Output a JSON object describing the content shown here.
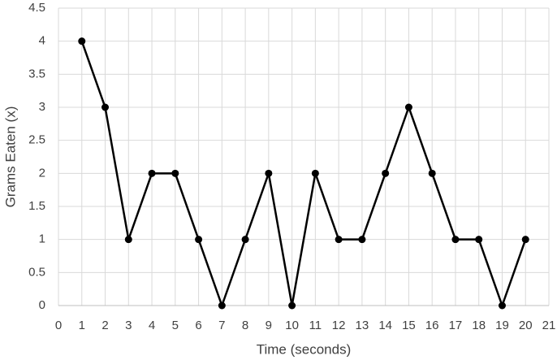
{
  "chart_data": {
    "type": "line",
    "x_label": "Time (seconds)",
    "y_label": "Grams Eaten (x)",
    "x": [
      1,
      2,
      3,
      4,
      5,
      6,
      7,
      8,
      9,
      10,
      11,
      12,
      13,
      14,
      15,
      16,
      17,
      18,
      19,
      20
    ],
    "series": [
      {
        "color": "#000000",
        "values": [
          4,
          3,
          1,
          2,
          2,
          1,
          0,
          1,
          2,
          0,
          2,
          1,
          1,
          2,
          3,
          2,
          1,
          1,
          0,
          1
        ]
      }
    ],
    "xlim": [
      0,
      21
    ],
    "xticks": [
      0,
      1,
      2,
      3,
      4,
      5,
      6,
      7,
      8,
      9,
      10,
      11,
      12,
      13,
      14,
      15,
      16,
      17,
      18,
      19,
      20,
      21
    ],
    "ylim": [
      0,
      4.5
    ],
    "yticks": [
      0,
      0.5,
      1,
      1.5,
      2,
      2.5,
      3,
      3.5,
      4,
      4.5
    ],
    "grid": true
  }
}
